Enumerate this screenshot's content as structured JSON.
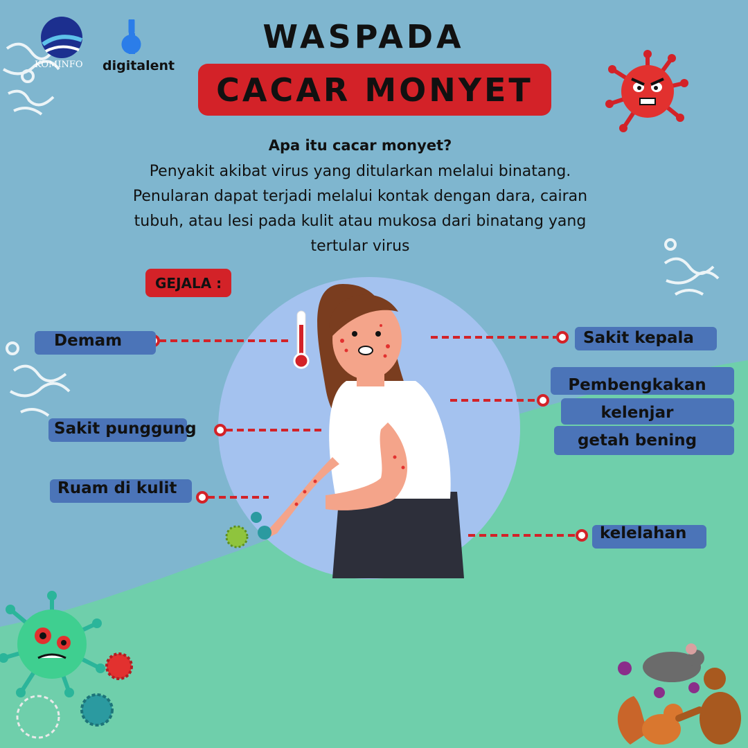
{
  "header": {
    "title_top": "WASPADA",
    "title_main": "CACAR MONYET"
  },
  "logos": {
    "kominfo": "KOMINFO",
    "digitalent": "digitalent"
  },
  "intro": {
    "question": "Apa itu cacar monyet?",
    "line1": "Penyakit akibat virus yang ditularkan melalui binatang.",
    "line2": "Penularan dapat terjadi melalui kontak dengan dara, cairan",
    "line3": "tubuh, atau lesi pada kulit atau mukosa dari binatang yang",
    "line4": "tertular virus"
  },
  "symptoms": {
    "heading": "GEJALA :",
    "demam": "Demam",
    "sakit_punggung": "Sakit punggung",
    "ruam": "Ruam di kulit",
    "sakit_kepala": "Sakit kepala",
    "kelenjar_1": "Pembengkakan",
    "kelenjar_2": "kelenjar",
    "kelenjar_3": "getah bening",
    "kelelahan": "kelelahan"
  },
  "colors": {
    "background_top": "#7fb6cf",
    "background_bottom": "#6fcfab",
    "accent_red": "#d32228",
    "label_blue": "#4874b8",
    "circle": "#a4c2ef"
  }
}
